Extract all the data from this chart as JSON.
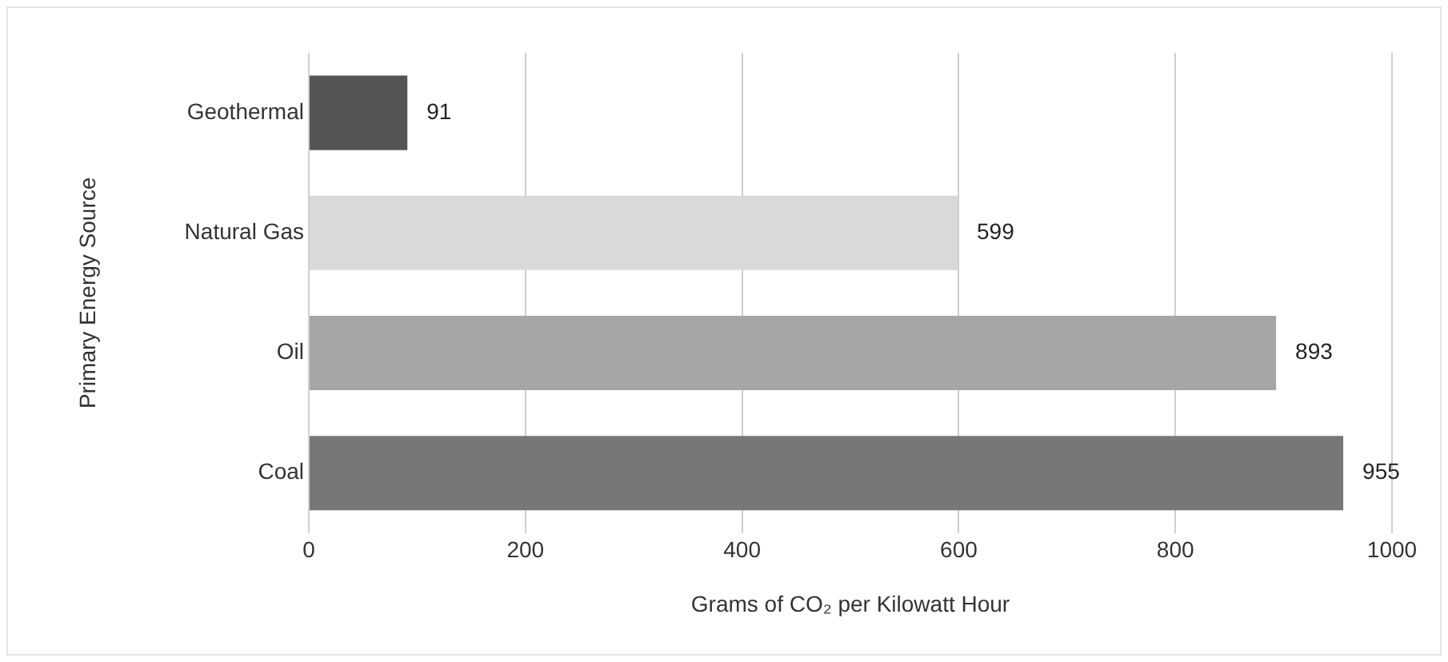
{
  "chart_data": {
    "type": "bar",
    "orientation": "horizontal",
    "xlabel": "Grams of CO₂ per Kilowatt Hour",
    "ylabel": "Primary Energy Source",
    "categories": [
      "Geothermal",
      "Natural Gas",
      "Oil",
      "Coal"
    ],
    "values": [
      91,
      599,
      893,
      955
    ],
    "colors": [
      "#555555",
      "#d9d9d9",
      "#a6a6a6",
      "#777777"
    ],
    "xlim": [
      0,
      1000
    ],
    "xticks": [
      0,
      200,
      400,
      600,
      800,
      1000
    ],
    "grid": "x",
    "data_labels": true
  }
}
